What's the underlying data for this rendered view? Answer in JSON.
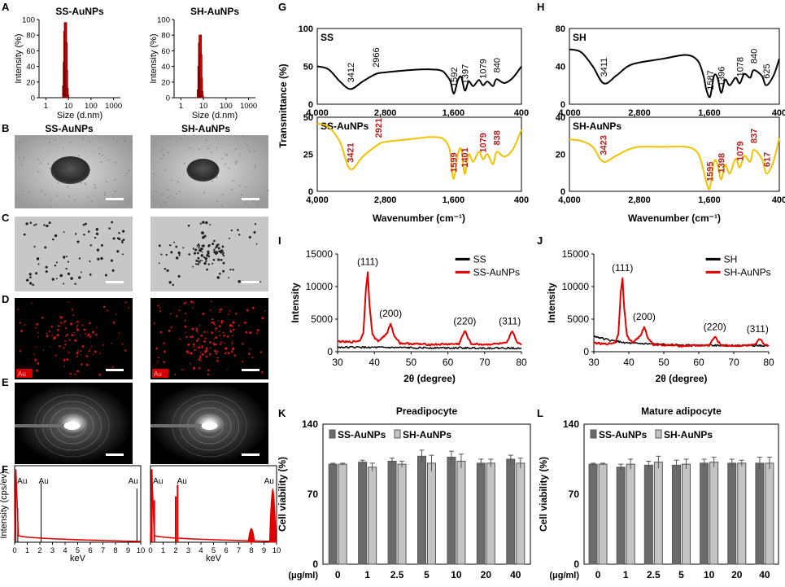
{
  "panels": {
    "A": {
      "letter": "A",
      "titles": [
        "SS-AuNPs",
        "SH-AuNPs"
      ],
      "ylabel": "Intensity (%)",
      "xlabel": "Size (d.nm)",
      "yticks": [
        "0",
        "20",
        "40",
        "60",
        "80",
        "100"
      ],
      "xticks": [
        "1",
        "10",
        "100",
        "1000"
      ]
    },
    "B": {
      "letter": "B",
      "titles": [
        "SS-AuNPs",
        "SH-AuNPs"
      ]
    },
    "C": {
      "letter": "C"
    },
    "D": {
      "letter": "D",
      "badge": "Au"
    },
    "E": {
      "letter": "E"
    },
    "F": {
      "letter": "F",
      "ylabel": "Intensity  (cps/ev)",
      "xlabel": "keV",
      "xticks": [
        "0",
        "1",
        "2",
        "3",
        "4",
        "5",
        "6",
        "7",
        "8",
        "9",
        "10"
      ],
      "peak_label": "Au"
    },
    "G": {
      "letter": "G",
      "top_label": "SS",
      "bottom_label": "SS-AuNPs",
      "ylabel": "Transmittance (%)",
      "xlabel": "Wavenumber  (cm⁻¹)",
      "xticks": [
        "4,000",
        "2,800",
        "1,600",
        "400"
      ],
      "top_yticks": [
        "0",
        "50",
        "100"
      ],
      "bottom_yticks": [
        "0",
        "25",
        "50"
      ],
      "top_peaks": [
        "3412",
        "2966",
        "1592",
        "1397",
        "1079",
        "840"
      ],
      "bottom_peaks": [
        "3421",
        "2921",
        "1599",
        "1401",
        "1079",
        "838"
      ]
    },
    "H": {
      "letter": "H",
      "top_label": "SH",
      "bottom_label": "SH-AuNPs",
      "xlabel": "Wavenumber  (cm⁻¹)",
      "xticks": [
        "4,000",
        "2,800",
        "1,600",
        "400"
      ],
      "top_yticks": [
        "0",
        "40",
        "80"
      ],
      "bottom_yticks": [
        "0",
        "20",
        "40"
      ],
      "top_peaks": [
        "3411",
        "1587",
        "1396",
        "1078",
        "840",
        "625"
      ],
      "bottom_peaks": [
        "3423",
        "1595",
        "1398",
        "1079",
        "837",
        "617"
      ]
    },
    "I": {
      "letter": "I",
      "ylabel": "Intensity",
      "xlabel": "2θ (degree)",
      "yticks": [
        "0",
        "5000",
        "10000",
        "15000"
      ],
      "xticks": [
        "30",
        "40",
        "50",
        "60",
        "70",
        "80"
      ],
      "legend": [
        "SS",
        "SS-AuNPs"
      ],
      "peaks": [
        "(111)",
        "(200)",
        "(220)",
        "(311)"
      ]
    },
    "J": {
      "letter": "J",
      "ylabel": "Intensity",
      "xlabel": "2θ (degree)",
      "yticks": [
        "0",
        "5000",
        "10000",
        "15000"
      ],
      "xticks": [
        "30",
        "40",
        "50",
        "60",
        "70",
        "80"
      ],
      "legend": [
        "SH",
        "SH-AuNPs"
      ],
      "peaks": [
        "(111)",
        "(200)",
        "(220)",
        "(311)"
      ]
    },
    "K": {
      "letter": "K",
      "title": "Preadipocyte",
      "ylabel": "Cell viability  (%)",
      "yticks": [
        "0",
        "70",
        "140"
      ],
      "xunit": "(μg/ml)",
      "legend": [
        "SS-AuNPs",
        "SH-AuNPs"
      ]
    },
    "L": {
      "letter": "L",
      "title": "Mature adipocyte",
      "ylabel": "Cell viability  (%)",
      "yticks": [
        "0",
        "70",
        "140"
      ],
      "xunit": "(μg/ml)",
      "legend": [
        "SS-AuNPs",
        "SH-AuNPs"
      ]
    }
  },
  "colors": {
    "red": "#e00000",
    "gold": "#f2c200",
    "darkred": "#b22222",
    "bar_dark": "#6b6b6b",
    "bar_light": "#c4c4c4",
    "black": "#000000"
  },
  "chart_data": [
    {
      "id": "A-left",
      "type": "bar",
      "title": "SS-AuNPs",
      "xlabel": "Size (d.nm)",
      "ylabel": "Intensity (%)",
      "xscale": "log",
      "xlim": [
        0.5,
        2000
      ],
      "ylim": [
        0,
        100
      ],
      "x": [
        6.2,
        6.6,
        7.0,
        7.4,
        7.8,
        8.2,
        8.7,
        9.2
      ],
      "values": [
        15,
        45,
        85,
        96,
        70,
        35,
        12,
        3
      ]
    },
    {
      "id": "A-right",
      "type": "bar",
      "title": "SH-AuNPs",
      "xlabel": "Size (d.nm)",
      "ylabel": "Intensity (%)",
      "xscale": "log",
      "xlim": [
        0.5,
        2000
      ],
      "ylim": [
        0,
        100
      ],
      "x": [
        6.0,
        6.4,
        6.8,
        7.2,
        7.6,
        8.0,
        8.5,
        9.0
      ],
      "values": [
        10,
        40,
        70,
        80,
        55,
        25,
        8,
        2
      ]
    },
    {
      "id": "F-left",
      "type": "line",
      "xlabel": "keV",
      "ylabel": "Intensity  (cps/ev)",
      "xlim": [
        0,
        10
      ],
      "peaks": [
        {
          "x": 0.1,
          "h": 0.95
        },
        {
          "x": 0.25,
          "h": 0.45
        },
        {
          "x": 2.1,
          "h": 0.78
        },
        {
          "x": 9.7,
          "h": 0.7
        }
      ],
      "labels": [
        {
          "x": 0.6,
          "text": "Au"
        },
        {
          "x": 2.3,
          "text": "Au"
        },
        {
          "x": 9.4,
          "text": "Au"
        }
      ]
    },
    {
      "id": "F-right",
      "type": "line",
      "xlabel": "keV",
      "ylabel": "Intensity  (cps/ev)",
      "xlim": [
        0,
        10
      ],
      "peaks": [
        {
          "x": 0.1,
          "h": 0.95
        },
        {
          "x": 0.3,
          "h": 0.55
        },
        {
          "x": 2.0,
          "h": 0.6
        },
        {
          "x": 2.15,
          "h": 0.75
        },
        {
          "x": 8.0,
          "h": 0.18
        },
        {
          "x": 9.7,
          "h": 0.7
        }
      ],
      "labels": [
        {
          "x": 0.6,
          "text": "Au"
        },
        {
          "x": 2.5,
          "text": "Au"
        },
        {
          "x": 9.4,
          "text": "Au"
        }
      ]
    },
    {
      "id": "G-top",
      "type": "line",
      "series": [
        {
          "name": "SS"
        }
      ],
      "xlim": [
        4000,
        400
      ],
      "ylim": [
        0,
        100
      ],
      "x": [
        4000,
        3800,
        3600,
        3412,
        3200,
        2966,
        2800,
        2400,
        2000,
        1800,
        1700,
        1650,
        1592,
        1520,
        1460,
        1397,
        1330,
        1250,
        1150,
        1079,
        1000,
        900,
        840,
        700,
        550,
        400
      ],
      "y": [
        50,
        46,
        30,
        20,
        30,
        40,
        42,
        45,
        46,
        44,
        36,
        30,
        14,
        32,
        36,
        18,
        30,
        24,
        32,
        25,
        30,
        24,
        33,
        28,
        35,
        50
      ]
    },
    {
      "id": "G-bottom",
      "type": "line",
      "series": [
        {
          "name": "SS-AuNPs"
        }
      ],
      "xlim": [
        4000,
        400
      ],
      "ylim": [
        0,
        60
      ],
      "x": [
        4000,
        3800,
        3600,
        3421,
        3200,
        2921,
        2800,
        2400,
        2000,
        1800,
        1700,
        1650,
        1599,
        1520,
        1460,
        1401,
        1330,
        1250,
        1150,
        1079,
        1000,
        900,
        838,
        700,
        550,
        400
      ],
      "y": [
        55,
        52,
        40,
        18,
        28,
        38,
        40,
        42,
        44,
        43,
        38,
        30,
        10,
        30,
        34,
        14,
        30,
        24,
        32,
        26,
        30,
        22,
        32,
        28,
        34,
        50
      ]
    },
    {
      "id": "H-top",
      "type": "line",
      "series": [
        {
          "name": "SH"
        }
      ],
      "xlim": [
        4000,
        400
      ],
      "ylim": [
        0,
        80
      ],
      "x": [
        4000,
        3800,
        3600,
        3411,
        3200,
        3000,
        2800,
        2400,
        2000,
        1800,
        1700,
        1650,
        1587,
        1520,
        1460,
        1396,
        1330,
        1250,
        1150,
        1078,
        1000,
        900,
        840,
        700,
        625,
        500,
        400
      ],
      "y": [
        58,
        55,
        40,
        22,
        30,
        40,
        44,
        48,
        52,
        46,
        30,
        15,
        8,
        30,
        28,
        12,
        26,
        20,
        28,
        22,
        32,
        28,
        36,
        30,
        20,
        30,
        48
      ]
    },
    {
      "id": "H-bottom",
      "type": "line",
      "series": [
        {
          "name": "SH-AuNPs"
        }
      ],
      "xlim": [
        4000,
        400
      ],
      "ylim": [
        0,
        50
      ],
      "x": [
        4000,
        3800,
        3600,
        3423,
        3200,
        3000,
        2800,
        2400,
        2000,
        1800,
        1700,
        1650,
        1595,
        1520,
        1460,
        1398,
        1330,
        1250,
        1150,
        1079,
        1000,
        900,
        837,
        700,
        617,
        500,
        400
      ],
      "y": [
        35,
        34,
        30,
        20,
        24,
        28,
        30,
        30,
        30,
        26,
        14,
        6,
        2,
        20,
        18,
        8,
        18,
        12,
        22,
        16,
        24,
        20,
        28,
        22,
        12,
        20,
        36
      ]
    },
    {
      "id": "I",
      "type": "line",
      "xlabel": "2θ (degree)",
      "ylabel": "Intensity",
      "xlim": [
        30,
        80
      ],
      "ylim": [
        0,
        15000
      ],
      "series": [
        {
          "name": "SS",
          "color": "black",
          "x": [
            30,
            40,
            50,
            60,
            70,
            80
          ],
          "y": [
            700,
            650,
            600,
            600,
            550,
            550
          ]
        },
        {
          "name": "SS-AuNPs",
          "color": "red",
          "x": [
            30,
            32,
            34,
            36,
            37,
            37.7,
            38.2,
            38.7,
            39.5,
            41,
            43.5,
            44.4,
            45.3,
            47,
            55,
            63,
            64.6,
            66.3,
            70,
            76,
            77.5,
            79,
            80
          ],
          "y": [
            1600,
            1500,
            1500,
            1700,
            2800,
            9500,
            12300,
            7000,
            2600,
            1600,
            2800,
            4400,
            2600,
            1300,
            1100,
            1200,
            3200,
            1200,
            1100,
            1300,
            3200,
            1300,
            1100
          ]
        }
      ]
    },
    {
      "id": "J",
      "type": "line",
      "xlabel": "2θ (degree)",
      "ylabel": "Intensity",
      "xlim": [
        30,
        80
      ],
      "ylim": [
        0,
        15000
      ],
      "series": [
        {
          "name": "SH",
          "color": "black",
          "x": [
            30,
            35,
            40,
            50,
            60,
            70,
            80
          ],
          "y": [
            2400,
            1700,
            1300,
            1100,
            1000,
            950,
            950
          ]
        },
        {
          "name": "SH-AuNPs",
          "color": "red",
          "x": [
            30,
            32,
            34,
            36,
            37,
            37.7,
            38.2,
            38.7,
            39.5,
            41,
            43.5,
            44.4,
            45.3,
            47,
            55,
            63,
            64.6,
            66.3,
            70,
            76,
            77.5,
            79,
            80
          ],
          "y": [
            1400,
            1200,
            1200,
            1400,
            2600,
            9200,
            11400,
            6500,
            2400,
            1400,
            2500,
            3900,
            2300,
            1100,
            900,
            1000,
            2300,
            1000,
            900,
            1000,
            2000,
            1000,
            900
          ]
        }
      ]
    },
    {
      "id": "K",
      "type": "bar",
      "title": "Preadipocyte",
      "ylabel": "Cell viability  (%)",
      "ylim": [
        0,
        140
      ],
      "categories": [
        "0",
        "1",
        "2.5",
        "5",
        "10",
        "20",
        "40"
      ],
      "series": [
        {
          "name": "SS-AuNPs",
          "values": [
            100,
            102,
            103,
            108,
            107,
            101,
            105
          ],
          "errors": [
            1,
            2,
            3,
            6,
            6,
            4,
            4
          ]
        },
        {
          "name": "SH-AuNPs",
          "values": [
            100,
            97,
            100,
            101,
            103,
            101,
            101
          ],
          "errors": [
            1,
            4,
            3,
            8,
            7,
            4,
            5
          ]
        }
      ]
    },
    {
      "id": "L",
      "type": "bar",
      "title": "Mature adipocyte",
      "ylabel": "Cell viability  (%)",
      "ylim": [
        0,
        140
      ],
      "categories": [
        "0",
        "1",
        "2.5",
        "5",
        "10",
        "20",
        "40"
      ],
      "series": [
        {
          "name": "SS-AuNPs",
          "values": [
            100,
            97,
            99,
            99,
            101,
            101,
            101
          ],
          "errors": [
            1,
            3,
            4,
            5,
            4,
            4,
            6
          ]
        },
        {
          "name": "SH-AuNPs",
          "values": [
            100,
            100,
            102,
            100,
            102,
            101,
            101
          ],
          "errors": [
            1,
            5,
            6,
            5,
            5,
            3,
            6
          ]
        }
      ]
    }
  ]
}
